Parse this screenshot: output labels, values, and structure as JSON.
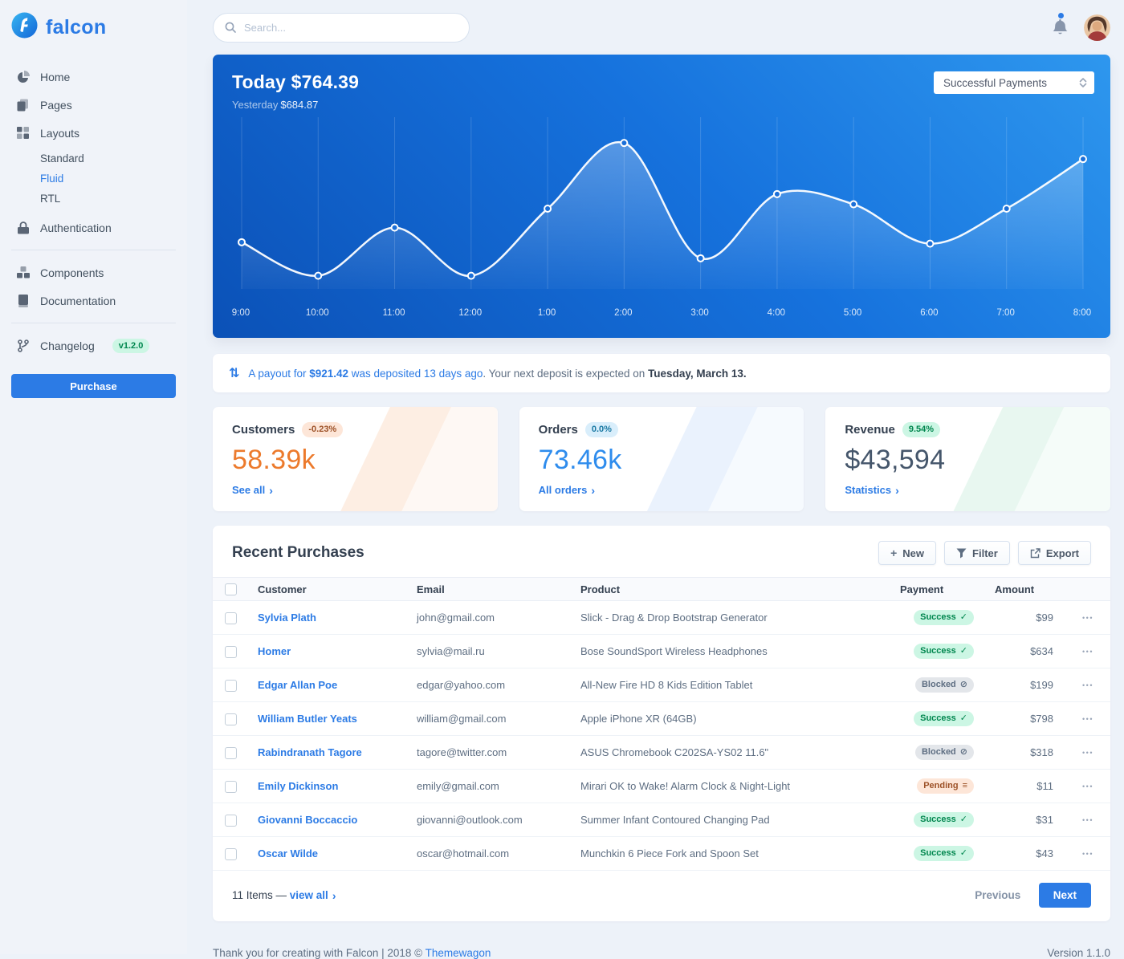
{
  "brand": {
    "name": "falcon"
  },
  "topbar": {
    "search_placeholder": "Search..."
  },
  "sidebar": {
    "home": "Home",
    "pages": "Pages",
    "layouts": "Layouts",
    "standard": "Standard",
    "fluid": "Fluid",
    "rtl": "RTL",
    "authentication": "Authentication",
    "components": "Components",
    "documentation": "Documentation",
    "changelog": "Changelog",
    "changelog_badge": "v1.2.0",
    "purchase": "Purchase"
  },
  "chart_card": {
    "title": "Today $764.39",
    "yesterday_label": "Yesterday",
    "yesterday_value": "$684.87",
    "select_value": "Successful Payments"
  },
  "chart_data": {
    "type": "line",
    "title": "Today $764.39",
    "x": [
      "9:00",
      "10:00",
      "11:00",
      "12:00",
      "1:00",
      "2:00",
      "3:00",
      "4:00",
      "5:00",
      "6:00",
      "7:00",
      "8:00"
    ],
    "values": [
      32,
      9,
      42,
      9,
      55,
      100,
      21,
      65,
      58,
      31,
      55,
      89
    ],
    "ylim": [
      0,
      110
    ],
    "xlabel": "",
    "ylabel": "",
    "grid": "vertical-only",
    "legend": "none",
    "line_color": "#ffffff"
  },
  "payout": {
    "icon": "⇅",
    "link_pre": "A payout for ",
    "amount": "$921.42",
    "link_post": " was deposited 13 days ago",
    "middle": ". Your next deposit is expected on ",
    "date": "Tuesday, March 13."
  },
  "stats": [
    {
      "title": "Customers",
      "badge": "-0.23%",
      "value": "58.39k",
      "link": "See all"
    },
    {
      "title": "Orders",
      "badge": "0.0%",
      "value": "73.46k",
      "link": "All orders"
    },
    {
      "title": "Revenue",
      "badge": "9.54%",
      "value": "$43,594",
      "link": "Statistics"
    }
  ],
  "purchases": {
    "title": "Recent Purchases",
    "actions": {
      "new": "New",
      "filter": "Filter",
      "export": "Export"
    },
    "columns": {
      "customer": "Customer",
      "email": "Email",
      "product": "Product",
      "payment": "Payment",
      "amount": "Amount"
    },
    "rows": [
      {
        "customer": "Sylvia Plath",
        "email": "john@gmail.com",
        "product": "Slick - Drag & Drop Bootstrap Generator",
        "status": "Success",
        "status_icon": "✓",
        "amount": "$99"
      },
      {
        "customer": "Homer",
        "email": "sylvia@mail.ru",
        "product": "Bose SoundSport Wireless Headphones",
        "status": "Success",
        "status_icon": "✓",
        "amount": "$634"
      },
      {
        "customer": "Edgar Allan Poe",
        "email": "edgar@yahoo.com",
        "product": "All-New Fire HD 8 Kids Edition Tablet",
        "status": "Blocked",
        "status_icon": "⊘",
        "amount": "$199"
      },
      {
        "customer": "William Butler Yeats",
        "email": "william@gmail.com",
        "product": "Apple iPhone XR (64GB)",
        "status": "Success",
        "status_icon": "✓",
        "amount": "$798"
      },
      {
        "customer": "Rabindranath Tagore",
        "email": "tagore@twitter.com",
        "product": "ASUS Chromebook C202SA-YS02 11.6\"",
        "status": "Blocked",
        "status_icon": "⊘",
        "amount": "$318"
      },
      {
        "customer": "Emily Dickinson",
        "email": "emily@gmail.com",
        "product": "Mirari OK to Wake! Alarm Clock & Night-Light",
        "status": "Pending",
        "status_icon": "≡",
        "amount": "$11"
      },
      {
        "customer": "Giovanni Boccaccio",
        "email": "giovanni@outlook.com",
        "product": "Summer Infant Contoured Changing Pad",
        "status": "Success",
        "status_icon": "✓",
        "amount": "$31"
      },
      {
        "customer": "Oscar Wilde",
        "email": "oscar@hotmail.com",
        "product": "Munchkin 6 Piece Fork and Spoon Set",
        "status": "Success",
        "status_icon": "✓",
        "amount": "$43"
      }
    ],
    "footer": {
      "items": "11 Items — ",
      "view_all": "view all",
      "previous": "Previous",
      "next": "Next"
    }
  },
  "footer": {
    "left": "Thank you for creating with Falcon | 2018 © ",
    "link": "Themewagon",
    "right": "Version 1.1.0"
  },
  "icons": {
    "chevron_right": "›",
    "plus": "+",
    "ellipsis": "•••"
  },
  "colors": {
    "primary": "#2c7be5",
    "success_badge": "#00864e",
    "warning_value": "#ec7a2c",
    "info_value": "#2e8ced",
    "chart_bg_start": "#0b51b7",
    "chart_bg_end": "#2e97ee",
    "chart_line": "#ffffff"
  }
}
